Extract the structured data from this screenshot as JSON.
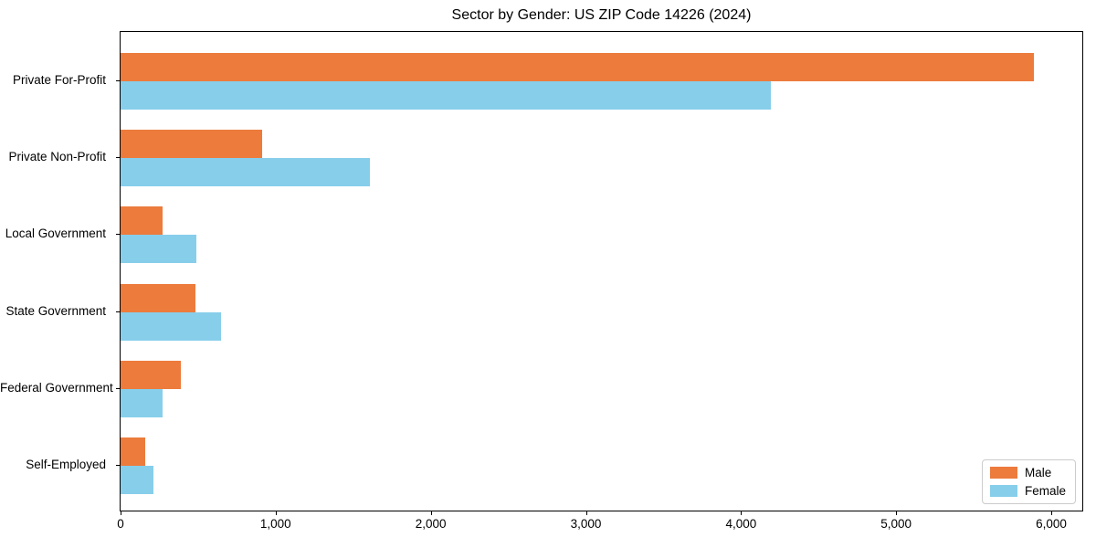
{
  "chart_data": {
    "type": "bar",
    "orientation": "horizontal",
    "title": "Sector by Gender: US ZIP Code 14226 (2024)",
    "categories": [
      "Private For-Profit",
      "Private Non-Profit",
      "Local Government",
      "State Government",
      "Federal Government",
      "Self-Employed"
    ],
    "series": [
      {
        "name": "Male",
        "color": "#ec7b3c",
        "values": [
          5890,
          910,
          270,
          480,
          390,
          160
        ]
      },
      {
        "name": "Female",
        "color": "#87ceeb",
        "values": [
          4190,
          1610,
          490,
          650,
          270,
          210
        ]
      }
    ],
    "xlabel": "",
    "ylabel": "",
    "xlim": [
      0,
      6200
    ],
    "xticks": [
      0,
      1000,
      2000,
      3000,
      4000,
      5000,
      6000
    ],
    "xtick_labels": [
      "0",
      "1,000",
      "2,000",
      "3,000",
      "4,000",
      "5,000",
      "6,000"
    ],
    "grid": false,
    "legend": {
      "position": "lower right",
      "labels": [
        "Male",
        "Female"
      ]
    }
  },
  "colors": {
    "male": "#ec7b3c",
    "female": "#87ceeb",
    "axis": "#000000",
    "legend_border": "#cccccc",
    "background": "#ffffff"
  }
}
